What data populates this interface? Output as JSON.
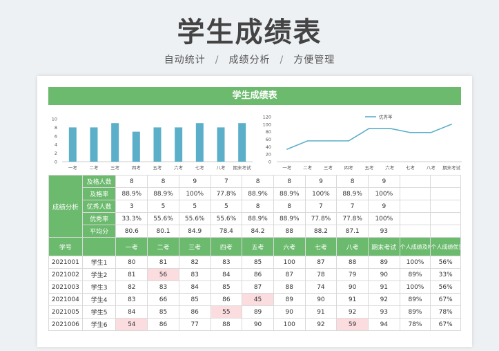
{
  "header": {
    "title": "学生成绩表",
    "subtitle_items": [
      "自动统计",
      "成绩分析",
      "方便管理"
    ],
    "separator": "/"
  },
  "sheet": {
    "title": "学生成绩表"
  },
  "chart_data": [
    {
      "type": "bar",
      "categories": [
        "一考",
        "二考",
        "三考",
        "四考",
        "五考",
        "六考",
        "七考",
        "八考",
        "期末考试"
      ],
      "series": [
        {
          "values": [
            8,
            8,
            9,
            7,
            8,
            8,
            9,
            8,
            9
          ]
        }
      ],
      "ylim": [
        0,
        10
      ],
      "yticks": [
        0,
        2,
        4,
        6,
        8,
        10
      ],
      "color": "#5bafc8",
      "grid": false
    },
    {
      "type": "line",
      "categories": [
        "一考",
        "二考",
        "三考",
        "四考",
        "五考",
        "六考",
        "七考",
        "八考",
        "期末考试"
      ],
      "series": [
        {
          "name": "优秀率",
          "values": [
            33.3,
            55.6,
            55.6,
            55.6,
            88.9,
            88.9,
            77.8,
            77.8,
            100
          ]
        }
      ],
      "ylim": [
        0,
        120
      ],
      "yticks": [
        0,
        20,
        40,
        60,
        80,
        100,
        120
      ],
      "legend": "top-center",
      "color": "#5bafc8",
      "grid": false
    }
  ],
  "summary": {
    "section_label": "成绩分析",
    "rows": [
      {
        "label": "及格人数",
        "values": [
          "8",
          "8",
          "9",
          "7",
          "8",
          "8",
          "9",
          "8",
          "9"
        ]
      },
      {
        "label": "及格率",
        "values": [
          "88.9%",
          "88.9%",
          "100%",
          "77.8%",
          "88.9%",
          "88.9%",
          "100%",
          "88.9%",
          "100%"
        ]
      },
      {
        "label": "优秀人数",
        "values": [
          "3",
          "5",
          "5",
          "5",
          "8",
          "8",
          "7",
          "7",
          "9"
        ]
      },
      {
        "label": "优秀率",
        "values": [
          "33.3%",
          "55.6%",
          "55.6%",
          "55.6%",
          "88.9%",
          "88.9%",
          "77.8%",
          "77.8%",
          "100%"
        ]
      },
      {
        "label": "平均分",
        "values": [
          "80.6",
          "80.1",
          "84.9",
          "78.4",
          "84.2",
          "88",
          "88.2",
          "87.1",
          "93"
        ]
      }
    ]
  },
  "columns": {
    "id": "学号",
    "name": "",
    "exams": [
      "一考",
      "二考",
      "三考",
      "四考",
      "五考",
      "六考",
      "七考",
      "八考",
      "期末考试"
    ],
    "pass_rate": "个人成绩及格率",
    "excellent_rate": "个人成绩优秀率"
  },
  "students": [
    {
      "id": "2021001",
      "name": "学生1",
      "scores": [
        "80",
        "81",
        "82",
        "83",
        "85",
        "100",
        "87",
        "88",
        "89"
      ],
      "pass_rate": "100%",
      "excellent_rate": "56%",
      "low": []
    },
    {
      "id": "2021002",
      "name": "学生2",
      "scores": [
        "81",
        "56",
        "83",
        "84",
        "86",
        "87",
        "78",
        "79",
        "90"
      ],
      "pass_rate": "89%",
      "excellent_rate": "33%",
      "low": [
        1
      ]
    },
    {
      "id": "2021003",
      "name": "学生3",
      "scores": [
        "82",
        "83",
        "84",
        "85",
        "87",
        "88",
        "74",
        "90",
        "91"
      ],
      "pass_rate": "100%",
      "excellent_rate": "56%",
      "low": []
    },
    {
      "id": "2021004",
      "name": "学生4",
      "scores": [
        "83",
        "66",
        "85",
        "86",
        "45",
        "89",
        "90",
        "91",
        "92"
      ],
      "pass_rate": "89%",
      "excellent_rate": "67%",
      "low": [
        4
      ]
    },
    {
      "id": "2021005",
      "name": "学生5",
      "scores": [
        "84",
        "85",
        "86",
        "55",
        "89",
        "90",
        "91",
        "92",
        "93"
      ],
      "pass_rate": "89%",
      "excellent_rate": "78%",
      "low": [
        3
      ]
    },
    {
      "id": "2021006",
      "name": "学生6",
      "scores": [
        "54",
        "86",
        "77",
        "88",
        "90",
        "100",
        "92",
        "59",
        "94"
      ],
      "pass_rate": "78%",
      "excellent_rate": "67%",
      "low": [
        0,
        7
      ]
    }
  ]
}
